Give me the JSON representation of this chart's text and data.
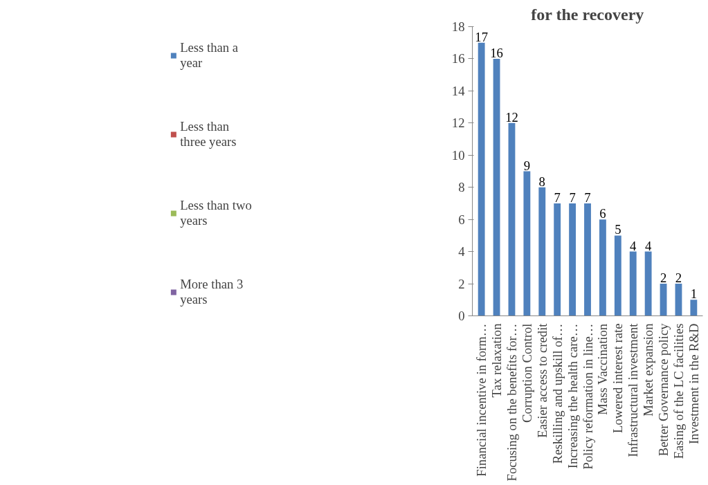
{
  "chart_data": {
    "type": "bar",
    "title": "for the recovery",
    "categories": [
      "Financial incentive in form…",
      "Tax relaxation",
      "Focusing on the benefits for…",
      "Corruption Control",
      "Easier access to credit",
      "Reskilling and upskill of…",
      "Increasing the health care…",
      "Policy reformation in line…",
      "Mass Vaccination",
      "Lowered interest rate",
      "Infrastructural investment",
      "Market expansion",
      "Better Governance policy",
      "Easing of the LC facilities",
      "Investment in the R&D"
    ],
    "series": [
      {
        "name": "Less than a year",
        "color": "#4f81bd",
        "values": [
          17,
          16,
          12,
          9,
          8,
          7,
          7,
          7,
          6,
          5,
          4,
          4,
          2,
          2,
          1
        ]
      },
      {
        "name": "Less than three years",
        "color": "#c0504d",
        "values": [
          null,
          null,
          null,
          null,
          null,
          null,
          null,
          null,
          null,
          null,
          null,
          null,
          null,
          null,
          null
        ]
      },
      {
        "name": "Less than two years",
        "color": "#9bbb59",
        "values": [
          null,
          null,
          null,
          null,
          null,
          null,
          null,
          null,
          null,
          null,
          null,
          null,
          null,
          null,
          null
        ]
      },
      {
        "name": "More than 3 years",
        "color": "#8064a2",
        "values": [
          null,
          null,
          null,
          null,
          null,
          null,
          null,
          null,
          null,
          null,
          null,
          null,
          null,
          null,
          null
        ]
      }
    ],
    "ylim": [
      0,
      18
    ],
    "yticks": [
      0,
      2,
      4,
      6,
      8,
      10,
      12,
      14,
      16,
      18
    ],
    "data_labels": true,
    "grid": false,
    "legend": "left"
  }
}
